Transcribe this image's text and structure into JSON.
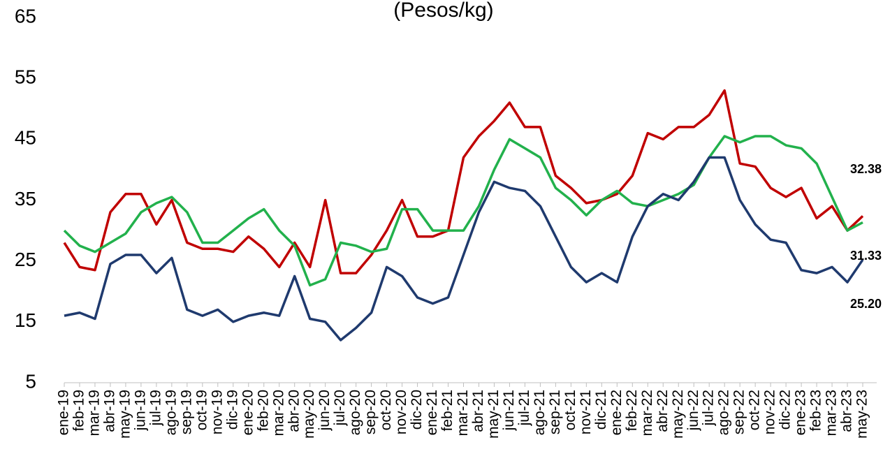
{
  "chart_data": {
    "type": "line",
    "title": "(Pesos/kg)",
    "categories": [
      "ene-19",
      "feb-19",
      "mar-19",
      "abr-19",
      "may-19",
      "jun-19",
      "jul-19",
      "ago-19",
      "sep-19",
      "oct-19",
      "nov-19",
      "dic-19",
      "ene-20",
      "feb-20",
      "mar-20",
      "abr-20",
      "may-20",
      "jun-20",
      "jul-20",
      "ago-20",
      "sep-20",
      "oct-20",
      "nov-20",
      "dic-20",
      "ene-21",
      "feb-21",
      "mar-21",
      "abr-21",
      "may-21",
      "jun-21",
      "jul-21",
      "ago-21",
      "sep-21",
      "oct-21",
      "nov-21",
      "dic-21",
      "ene-22",
      "feb-22",
      "mar-22",
      "abr-22",
      "may-22",
      "jun-22",
      "jul-22",
      "ago-22",
      "sep-22",
      "oct-22",
      "nov-22",
      "dic-22",
      "ene-23",
      "feb-23",
      "mar-23",
      "abr-23",
      "may-23"
    ],
    "series": [
      {
        "color": "#c00000",
        "values": [
          28,
          24,
          23.5,
          33,
          36,
          36,
          31,
          35,
          28,
          27,
          27,
          26.5,
          29,
          27,
          24,
          28,
          24,
          35,
          23,
          23,
          26,
          30,
          35,
          29,
          29,
          30,
          42,
          45.5,
          48,
          51,
          47,
          47,
          39,
          37,
          34.5,
          35,
          36,
          39,
          46,
          45,
          47,
          47,
          49,
          53,
          41,
          40.5,
          37,
          35.5,
          37,
          32,
          34,
          30,
          32.38
        ]
      },
      {
        "color": "#22b14c",
        "values": [
          30,
          27.5,
          26.5,
          28,
          29.5,
          33,
          34.5,
          35.5,
          33,
          28,
          28,
          30,
          32,
          33.5,
          30,
          27.5,
          21,
          22,
          28,
          27.5,
          26.5,
          27,
          33.5,
          33.5,
          30,
          30,
          30,
          34,
          40,
          45,
          43.5,
          42,
          37,
          35,
          32.5,
          35,
          36.5,
          34.5,
          34,
          35,
          36,
          37.5,
          42,
          45.5,
          44.5,
          45.5,
          45.5,
          44,
          43.5,
          41,
          35.5,
          30,
          31.33
        ]
      },
      {
        "color": "#1f3a6e",
        "values": [
          16,
          16.5,
          15.5,
          24.5,
          26,
          26,
          23,
          25.5,
          17,
          16,
          17,
          15,
          16,
          16.5,
          16,
          22.5,
          15.5,
          15,
          12,
          14,
          16.5,
          24,
          22.5,
          19,
          18,
          19,
          26,
          33,
          38,
          37,
          36.5,
          34,
          29,
          24,
          21.5,
          23,
          21.5,
          29,
          34,
          36,
          35,
          38,
          42,
          42,
          35,
          31,
          28.5,
          28,
          23.5,
          23,
          24,
          21.5,
          25.2
        ]
      }
    ],
    "annotations": [
      "32.38",
      "31.33",
      "25.20"
    ],
    "ylim": [
      5,
      65
    ],
    "yticks": [
      5,
      15,
      25,
      35,
      45,
      55,
      65
    ]
  }
}
